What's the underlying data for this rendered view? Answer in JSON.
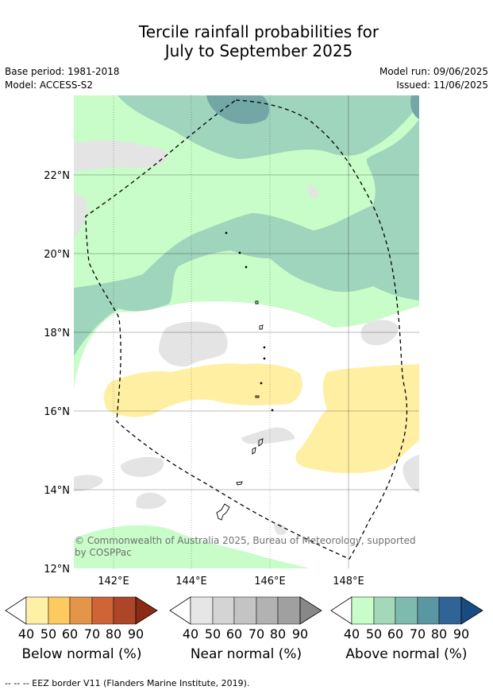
{
  "title_line1": "Tercile rainfall probabilities for",
  "title_line2": "July to September 2025",
  "base_period": "Base period: 1981-2018",
  "model": "Model: ACCESS-S2",
  "model_run": "Model run: 09/06/2025",
  "issued": "Issued: 11/06/2025",
  "lat_labels": [
    "22°N",
    "20°N",
    "18°N",
    "16°N",
    "14°N",
    "12°N"
  ],
  "lon_labels": [
    "142°E",
    "144°E",
    "146°E",
    "148°E"
  ],
  "copyright_line1": "© Commonwealth of Australia 2025, Bureau of Meteorology, supported",
  "copyright_line2": "by COSPPac",
  "colorbars": [
    {
      "label": "Below normal (%)",
      "ticks": [
        "40",
        "50",
        "60",
        "70",
        "80",
        "90"
      ],
      "colors": [
        "#fff0a8",
        "#fdca60",
        "#e3954a",
        "#cf6536",
        "#ad4628",
        "#8c2a18"
      ]
    },
    {
      "label": "Near normal (%)",
      "ticks": [
        "40",
        "50",
        "60",
        "70",
        "80",
        "90"
      ],
      "colors": [
        "#e6e6e6",
        "#d4d4d4",
        "#c4c4c4",
        "#b2b2b2",
        "#a0a0a0",
        "#888888"
      ]
    },
    {
      "label": "Above normal (%)",
      "ticks": [
        "40",
        "50",
        "60",
        "70",
        "80",
        "90"
      ],
      "colors": [
        "#c8fcc8",
        "#a3d8b8",
        "#7fbaaf",
        "#5b97a2",
        "#306496",
        "#174c80"
      ]
    }
  ],
  "footnote": "-- -- -- EEZ border V11 (Flanders Marine Institute, 2019).",
  "colors": {
    "above_40": "#c8fcc8",
    "above_50": "#9fd4bd",
    "above_60": "#72a7a6",
    "below_40": "#ffefa3",
    "near_40": "#e4e4e4"
  }
}
